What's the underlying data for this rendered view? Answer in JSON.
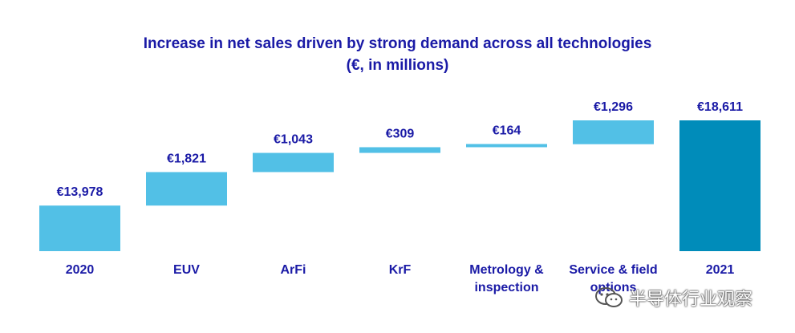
{
  "title_line1": "Increase in net sales driven by strong demand across all technologies",
  "title_line2": "(€, in millions)",
  "colors": {
    "increment": "#52c0e6",
    "total": "#008cba",
    "text": "#1a1aa6"
  },
  "watermark": {
    "text": "半导体行业观察",
    "icon": "wechat-icon"
  },
  "chart_data": {
    "type": "waterfall",
    "categories": [
      "2020",
      "EUV",
      "ArFi",
      "KrF",
      "Metrology & inspection",
      "Service & field options",
      "2021"
    ],
    "values": [
      13978,
      1821,
      1043,
      309,
      164,
      1296,
      18611
    ],
    "value_labels": [
      "€13,978",
      "€1,821",
      "€1,043",
      "€309",
      "€164",
      "€1,296",
      "€18,611"
    ],
    "kinds": [
      "total",
      "increase",
      "increase",
      "increase",
      "increase",
      "increase",
      "total"
    ],
    "ylim": [
      11000,
      19000
    ],
    "xlabel": "",
    "ylabel": "",
    "grid": false,
    "legend": "none"
  }
}
